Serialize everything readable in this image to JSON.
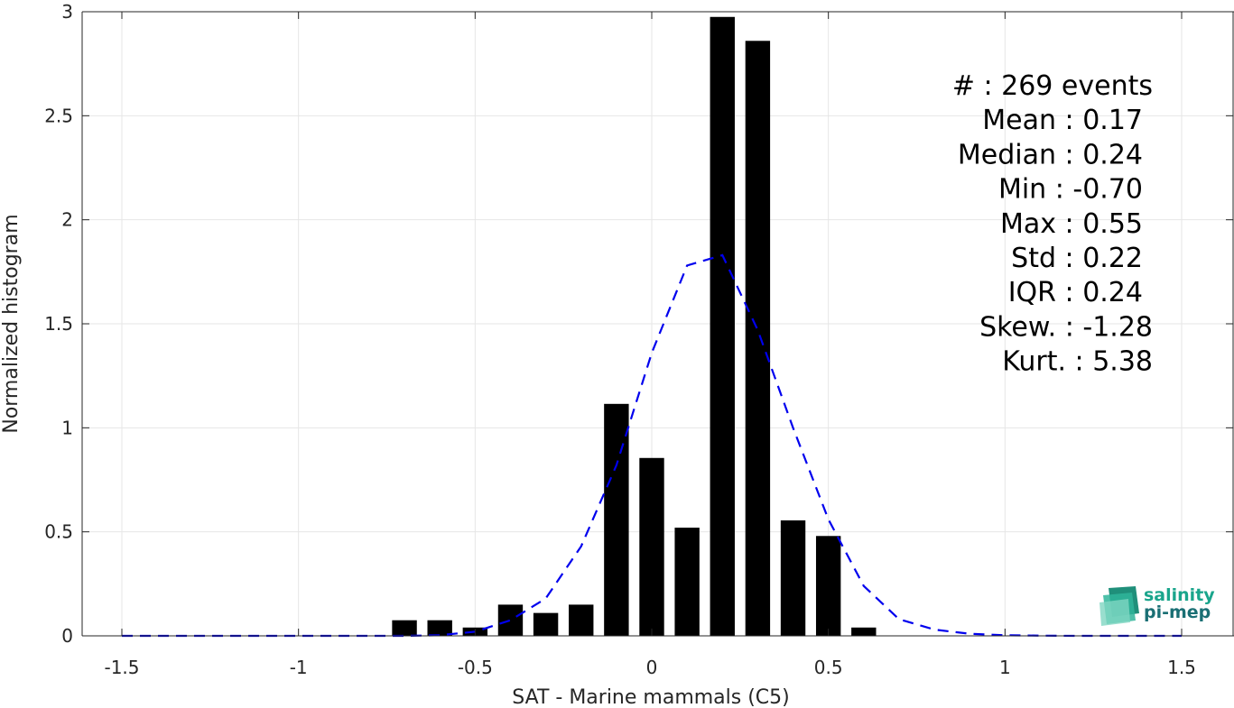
{
  "chart_data": {
    "type": "bar",
    "xlabel": "SAT - Marine mammals (C5)",
    "ylabel": "Normalized histogram",
    "xlim": [
      -1.5,
      1.5
    ],
    "ylim": [
      0,
      3
    ],
    "xticks": [
      -1.5,
      -1,
      -0.5,
      0,
      0.5,
      1,
      1.5
    ],
    "xtick_labels": [
      "-1.5",
      "-1",
      "-0.5",
      "0",
      "0.5",
      "1",
      "1.5"
    ],
    "yticks": [
      0,
      0.5,
      1,
      1.5,
      2,
      2.5,
      3
    ],
    "ytick_labels": [
      "0",
      "0.5",
      "1",
      "1.5",
      "2",
      "2.5",
      "3"
    ],
    "grid": true,
    "bar_width": 0.07,
    "bars": {
      "x": [
        -0.7,
        -0.6,
        -0.5,
        -0.4,
        -0.3,
        -0.2,
        -0.1,
        0.0,
        0.1,
        0.2,
        0.3,
        0.4,
        0.5,
        0.6
      ],
      "values": [
        0.075,
        0.075,
        0.04,
        0.15,
        0.11,
        0.15,
        1.115,
        0.855,
        0.52,
        2.975,
        2.86,
        0.555,
        0.48,
        0.04
      ],
      "color": "#000000"
    },
    "fit_curve": {
      "style": "dashed",
      "color": "#0000ee",
      "x": [
        -1.5,
        -1.4,
        -1.3,
        -1.2,
        -1.1,
        -1.0,
        -0.9,
        -0.8,
        -0.7,
        -0.6,
        -0.5,
        -0.4,
        -0.3,
        -0.2,
        -0.1,
        0.0,
        0.1,
        0.2,
        0.3,
        0.4,
        0.5,
        0.6,
        0.7,
        0.8,
        0.9,
        1.0,
        1.1,
        1.2,
        1.3,
        1.4,
        1.5
      ],
      "y": [
        0,
        0,
        0,
        0,
        0,
        0,
        0,
        0,
        0,
        0.003,
        0.02,
        0.075,
        0.18,
        0.43,
        0.82,
        1.36,
        1.78,
        1.83,
        1.47,
        1.0,
        0.56,
        0.24,
        0.08,
        0.03,
        0.01,
        0.003,
        0.001,
        0,
        0,
        0,
        0
      ]
    },
    "annotations": [
      "#  : 269 events",
      "Mean : 0.17",
      "Median : 0.24",
      "Min : -0.70",
      "Max : 0.55",
      "Std : 0.22",
      "IQR : 0.24",
      "Skew. : -1.28",
      "Kurt. : 5.38"
    ]
  },
  "logo": {
    "line1": "salinity",
    "line2": "pi-mep",
    "color": "#1aa58c"
  }
}
